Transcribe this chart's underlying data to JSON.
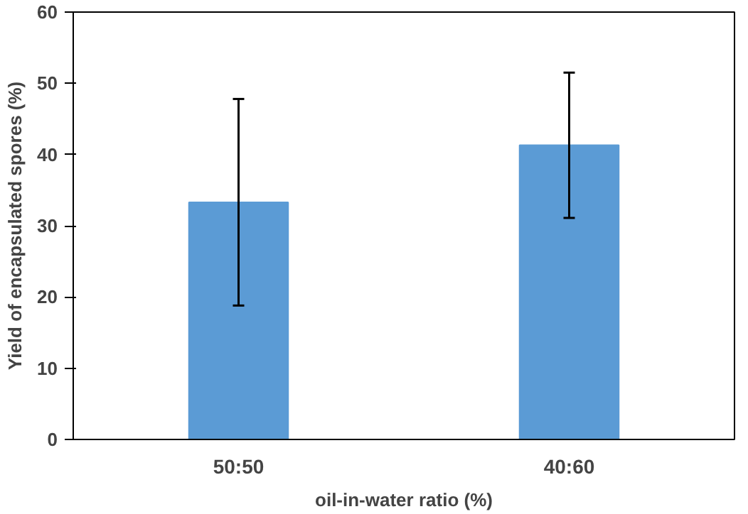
{
  "chart_data": {
    "type": "bar",
    "xlabel": "oil-in-water ratio (%)",
    "ylabel": "Yield of encapsulated spores (%)",
    "categories": [
      "50:50",
      "40:60"
    ],
    "values": [
      33.3,
      41.3
    ],
    "errors": [
      14.5,
      10.2
    ],
    "color": "#5b9bd5",
    "ylim": [
      0,
      60
    ],
    "yticks": [
      0,
      10,
      20,
      30,
      40,
      50,
      60
    ],
    "grid": false
  }
}
